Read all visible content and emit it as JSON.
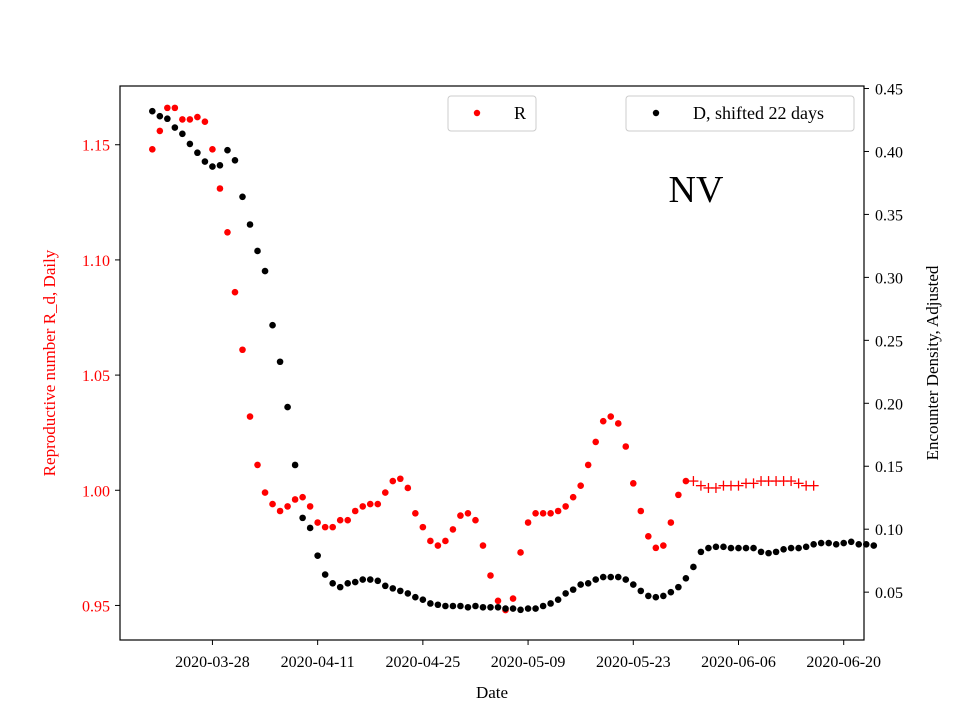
{
  "chart_data": {
    "type": "scatter",
    "title": "",
    "annotation": "NV",
    "xlabel": "Date",
    "ylabel_left": "Reproductive number R_d, Daily",
    "ylabel_right": "Encounter Density, Adjusted",
    "x_start": "2020-03-20",
    "x_tick_labels": [
      "2020-03-28",
      "2020-04-11",
      "2020-04-25",
      "2020-05-09",
      "2020-05-23",
      "2020-06-06",
      "2020-06-20"
    ],
    "x_tick_days": [
      8,
      22,
      36,
      50,
      64,
      78,
      92
    ],
    "xlim_days": [
      -4.3,
      94.7
    ],
    "ylim_left": [
      0.935,
      1.1755
    ],
    "ylim_right": [
      0.012,
      0.452
    ],
    "y_ticks_left": [
      "0.95",
      "1.00",
      "1.05",
      "1.10",
      "1.15"
    ],
    "y_ticks_right": [
      "0.05",
      "0.10",
      "0.15",
      "0.20",
      "0.25",
      "0.30",
      "0.35",
      "0.40",
      "0.45"
    ],
    "colors": {
      "R": "#ff0000",
      "D": "#000000",
      "axis_left": "#ff0000",
      "axis_right": "#000000"
    },
    "legend": [
      {
        "label": "R",
        "position": "upper-center"
      },
      {
        "label": "D, shifted 22 days",
        "position": "upper-right"
      }
    ],
    "series": [
      {
        "name": "R",
        "marker": "dot",
        "color": "#ff0000",
        "x_day_start": 0,
        "values": [
          1.148,
          1.156,
          1.166,
          1.166,
          1.161,
          1.161,
          1.162,
          1.16,
          1.148,
          1.131,
          1.112,
          1.086,
          1.061,
          1.032,
          1.011,
          0.999,
          0.994,
          0.991,
          0.993,
          0.996,
          0.997,
          0.993,
          0.986,
          0.984,
          0.984,
          0.987,
          0.987,
          0.991,
          0.993,
          0.994,
          0.994,
          0.999,
          1.004,
          1.005,
          1.001,
          0.99,
          0.984,
          0.978,
          0.976,
          0.978,
          0.983,
          0.989,
          0.99,
          0.987,
          0.976,
          0.963,
          0.952,
          0.948,
          0.953,
          0.973,
          0.986,
          0.99,
          0.99,
          0.99,
          0.991,
          0.993,
          0.997,
          1.002,
          1.011,
          1.021,
          1.03,
          1.032,
          1.029,
          1.019,
          1.003,
          0.991,
          0.98,
          0.975,
          0.976,
          0.986,
          0.998,
          1.004
        ]
      },
      {
        "name": "R_projection",
        "marker": "plus",
        "color": "#ff0000",
        "x_day_start": 72,
        "values": [
          1.004,
          1.002,
          1.001,
          1.001,
          1.002,
          1.002,
          1.002,
          1.003,
          1.003,
          1.004,
          1.004,
          1.004,
          1.004,
          1.004,
          1.003,
          1.002,
          1.002
        ]
      },
      {
        "name": "D, shifted 22 days",
        "marker": "dot",
        "color": "#000000",
        "x_day_start": 0,
        "values": [
          0.432,
          0.428,
          0.426,
          0.419,
          0.414,
          0.406,
          0.399,
          0.392,
          0.388,
          0.389,
          0.401,
          0.393,
          0.364,
          0.342,
          0.321,
          0.305,
          0.262,
          0.233,
          0.197,
          0.151,
          0.109,
          0.101,
          0.079,
          0.064,
          0.057,
          0.054,
          0.057,
          0.058,
          0.06,
          0.06,
          0.059,
          0.055,
          0.053,
          0.051,
          0.049,
          0.046,
          0.044,
          0.041,
          0.04,
          0.039,
          0.039,
          0.039,
          0.038,
          0.039,
          0.038,
          0.038,
          0.038,
          0.037,
          0.037,
          0.036,
          0.037,
          0.037,
          0.039,
          0.041,
          0.044,
          0.049,
          0.052,
          0.056,
          0.057,
          0.06,
          0.062,
          0.062,
          0.062,
          0.06,
          0.056,
          0.051,
          0.047,
          0.046,
          0.047,
          0.05,
          0.054,
          0.061,
          0.07,
          0.082,
          0.085,
          0.086,
          0.086,
          0.085,
          0.085,
          0.085,
          0.085,
          0.082,
          0.081,
          0.082,
          0.084,
          0.085,
          0.085,
          0.086,
          0.088,
          0.089,
          0.089,
          0.088,
          0.089,
          0.09,
          0.088,
          0.088,
          0.087
        ]
      }
    ]
  }
}
